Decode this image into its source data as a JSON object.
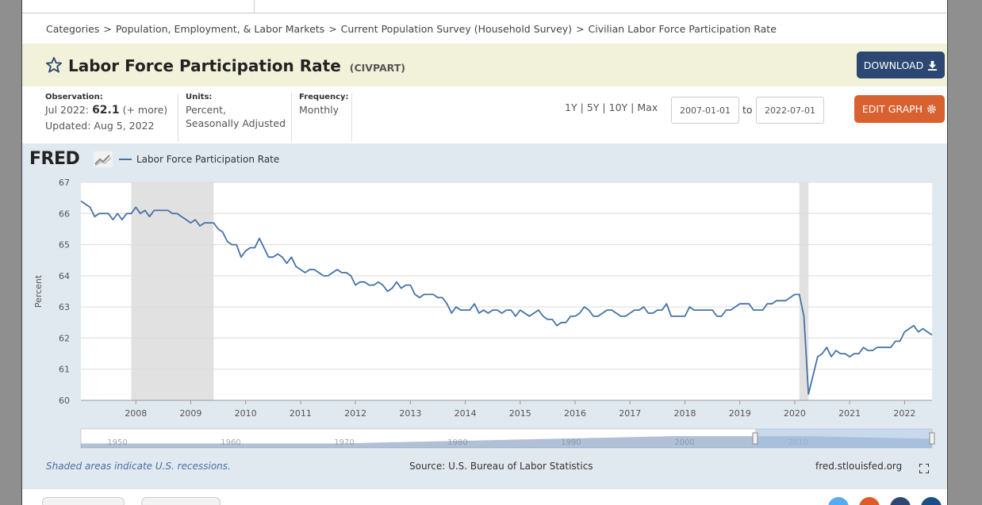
{
  "breadcrumb": {
    "items": [
      "Categories",
      "Population, Employment, & Labor Markets",
      "Current Population Survey (Household Survey)",
      "Civilian Labor Force Participation Rate"
    ],
    "separator": ">"
  },
  "header": {
    "title": "Labor Force Participation Rate",
    "series_id": "(CIVPART)",
    "download_label": "DOWNLOAD"
  },
  "meta": {
    "observation_label": "Observation:",
    "observation_date": "Jul 2022:",
    "observation_value": "62.1",
    "observation_more": "(+ more)",
    "updated": "Updated: Aug 5, 2022",
    "units_label": "Units:",
    "units_line1": "Percent,",
    "units_line2": "Seasonally Adjusted",
    "frequency_label": "Frequency:",
    "frequency_value": "Monthly"
  },
  "controls": {
    "ranges": [
      "1Y",
      "5Y",
      "10Y",
      "Max"
    ],
    "start_date": "2007-01-01",
    "to_label": "to",
    "end_date": "2022-07-01",
    "edit_label": "EDIT GRAPH"
  },
  "chart": {
    "logo_text": "FRED",
    "legend_label": "Labor Force Participation Rate",
    "footer_note": "Shaded areas indicate U.S. recessions.",
    "source": "Source: U.S. Bureau of Labor Statistics",
    "site": "fred.stlouisfed.org",
    "navigator_labels": [
      "1950",
      "1960",
      "1970",
      "1980",
      "1990",
      "2000",
      "2010"
    ]
  },
  "colors": {
    "line": "#4572a7",
    "recession": "#e1e1e1",
    "download": "#2c4872",
    "edit": "#d9602f",
    "title_bg": "#f2f1da",
    "chart_bg": "#e1e9f0"
  },
  "chart_data": {
    "type": "line",
    "ylabel": "Percent",
    "ylim": [
      60,
      67
    ],
    "yticks": [
      60,
      61,
      62,
      63,
      64,
      65,
      66,
      67
    ],
    "xlim": [
      "2007-01-01",
      "2022-07-01"
    ],
    "xticks": [
      "2008",
      "2009",
      "2010",
      "2011",
      "2012",
      "2013",
      "2014",
      "2015",
      "2016",
      "2017",
      "2018",
      "2019",
      "2020",
      "2021",
      "2022"
    ],
    "recessions": [
      [
        "2007-12-01",
        "2009-06-01"
      ],
      [
        "2020-02-01",
        "2020-04-01"
      ]
    ],
    "series": [
      {
        "name": "Labor Force Participation Rate",
        "start": "2007-01",
        "frequency": "monthly",
        "values": [
          66.4,
          66.3,
          66.2,
          65.9,
          66.0,
          66.0,
          66.0,
          65.8,
          66.0,
          65.8,
          66.0,
          66.0,
          66.2,
          66.0,
          66.1,
          65.9,
          66.1,
          66.1,
          66.1,
          66.1,
          66.0,
          66.0,
          65.9,
          65.8,
          65.7,
          65.8,
          65.6,
          65.7,
          65.7,
          65.7,
          65.5,
          65.4,
          65.1,
          65.0,
          65.0,
          64.6,
          64.8,
          64.9,
          64.9,
          65.2,
          64.9,
          64.6,
          64.6,
          64.7,
          64.6,
          64.4,
          64.6,
          64.3,
          64.2,
          64.1,
          64.2,
          64.2,
          64.1,
          64.0,
          64.0,
          64.1,
          64.2,
          64.1,
          64.1,
          64.0,
          63.7,
          63.8,
          63.8,
          63.7,
          63.7,
          63.8,
          63.7,
          63.5,
          63.6,
          63.8,
          63.6,
          63.7,
          63.7,
          63.4,
          63.3,
          63.4,
          63.4,
          63.4,
          63.3,
          63.3,
          63.1,
          62.8,
          63.0,
          62.9,
          62.9,
          62.9,
          63.1,
          62.8,
          62.9,
          62.8,
          62.9,
          62.9,
          62.8,
          62.9,
          62.9,
          62.7,
          62.9,
          62.8,
          62.7,
          62.8,
          62.9,
          62.7,
          62.6,
          62.6,
          62.4,
          62.5,
          62.5,
          62.7,
          62.7,
          62.8,
          63.0,
          62.9,
          62.7,
          62.7,
          62.8,
          62.9,
          62.9,
          62.8,
          62.7,
          62.7,
          62.8,
          62.9,
          62.9,
          63.0,
          62.8,
          62.8,
          62.9,
          62.9,
          63.1,
          62.7,
          62.7,
          62.7,
          62.7,
          63.0,
          62.9,
          62.9,
          62.9,
          62.9,
          62.9,
          62.7,
          62.7,
          62.9,
          62.9,
          63.0,
          63.1,
          63.1,
          63.1,
          62.9,
          62.9,
          62.9,
          63.1,
          63.1,
          63.2,
          63.2,
          63.2,
          63.3,
          63.4,
          63.4,
          62.7,
          60.2,
          60.8,
          61.4,
          61.5,
          61.7,
          61.4,
          61.6,
          61.5,
          61.5,
          61.4,
          61.5,
          61.5,
          61.7,
          61.6,
          61.6,
          61.7,
          61.7,
          61.7,
          61.7,
          61.9,
          61.9,
          62.2,
          62.3,
          62.4,
          62.2,
          62.3,
          62.2,
          62.1
        ]
      }
    ]
  }
}
